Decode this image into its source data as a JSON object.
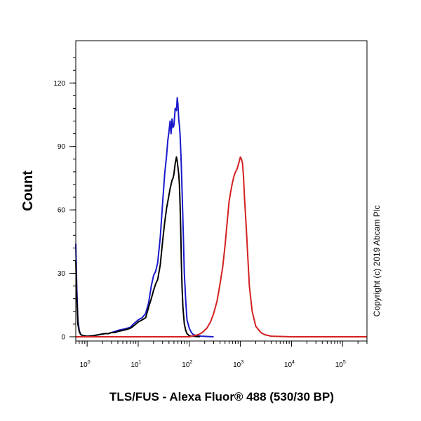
{
  "chart_data": {
    "type": "line",
    "xlabel": "TLS/FUS - Alexa Fluor® 488 (530/30 BP)",
    "ylabel": "Count",
    "copyright": "Copyright (c) 2019 Abcam Plc",
    "x_scale": "log",
    "xlim": [
      0.6,
      300000
    ],
    "ylim": [
      -2,
      140
    ],
    "x_ticks": [
      {
        "value": 1,
        "base": "10",
        "exp": "0"
      },
      {
        "value": 10,
        "base": "10",
        "exp": "1"
      },
      {
        "value": 100,
        "base": "10",
        "exp": "2"
      },
      {
        "value": 1000,
        "base": "10",
        "exp": "3"
      },
      {
        "value": 10000,
        "base": "10",
        "exp": "4"
      },
      {
        "value": 100000,
        "base": "10",
        "exp": "5"
      }
    ],
    "y_ticks": [
      {
        "value": 0,
        "label": "0"
      },
      {
        "value": 30,
        "label": "30"
      },
      {
        "value": 60,
        "label": "60"
      },
      {
        "value": 90,
        "label": "90"
      },
      {
        "value": 120,
        "label": "120"
      }
    ],
    "series": [
      {
        "color": "#1a1acc",
        "x": [
          0.6,
          0.63,
          0.66,
          0.7,
          0.75,
          0.85,
          1.0,
          1.3,
          1.7,
          2.2,
          2.6,
          3.0,
          3.5,
          4.0,
          5.0,
          6.0,
          7.0,
          8.0,
          9.0,
          10.0,
          12.0,
          14.0,
          16.0,
          18.0,
          20.0,
          22.0,
          24.0,
          27.0,
          30.0,
          33.0,
          36.0,
          38.0,
          40.0,
          42.0,
          44.0,
          46.0,
          48.0,
          50.0,
          53.0,
          56.0,
          58.0,
          60.0,
          62.0,
          64.0,
          66.0,
          68.0,
          70.0,
          72.0,
          75.0,
          80.0,
          85.0,
          90.0,
          100.0,
          110.0,
          120.0,
          140.0,
          170.0,
          200.0,
          300.0
        ],
        "y": [
          44,
          22,
          8,
          3,
          1,
          0.5,
          0.3,
          0.5,
          1,
          1.5,
          1.5,
          2,
          2.5,
          3,
          3.5,
          4,
          4.5,
          6,
          7,
          8,
          9,
          11,
          16,
          24,
          29,
          31,
          35,
          47,
          63,
          77,
          86,
          93,
          97,
          102,
          96,
          103,
          99,
          100,
          108,
          107,
          113,
          110,
          103,
          100,
          95,
          88,
          80,
          70,
          55,
          30,
          17,
          8,
          4,
          2,
          1,
          0.5,
          0.3,
          0.2,
          0
        ]
      },
      {
        "color": "#000000",
        "x": [
          0.6,
          0.63,
          0.66,
          0.7,
          0.75,
          0.85,
          1.0,
          1.3,
          1.7,
          2.2,
          2.6,
          3.0,
          3.5,
          4.0,
          5.0,
          6.0,
          7.0,
          8.0,
          9.0,
          10.0,
          12.0,
          14.0,
          16.0,
          18.0,
          20.0,
          22.0,
          24.0,
          27.0,
          30.0,
          33.0,
          36.0,
          38.0,
          40.0,
          42.0,
          44.0,
          46.0,
          48.0,
          50.0,
          53.0,
          56.0,
          58.0,
          60.0,
          62.0,
          64.0,
          66.0,
          68.0,
          70.0,
          72.0,
          75.0,
          80.0,
          85.0,
          90.0,
          100.0,
          110.0,
          130.0,
          160.0
        ],
        "y": [
          36,
          18,
          6,
          2.5,
          1,
          0.5,
          0.3,
          0.5,
          1,
          1.5,
          1.5,
          2,
          2,
          2.5,
          3,
          3.5,
          4,
          5,
          6,
          7,
          8,
          9,
          14,
          18,
          22,
          25,
          27,
          34,
          45,
          54,
          61,
          64,
          67,
          70,
          72,
          74,
          75,
          77,
          82,
          85,
          83,
          80,
          77,
          72,
          62,
          50,
          35,
          24,
          14,
          6,
          3,
          1.5,
          0.5,
          0.3,
          0.2,
          0
        ]
      },
      {
        "color": "#d42020",
        "x": [
          0.6,
          1,
          10,
          100,
          150,
          180,
          220,
          260,
          300,
          350,
          400,
          450,
          500,
          550,
          600,
          650,
          700,
          750,
          800,
          850,
          900,
          950,
          1000,
          1050,
          1100,
          1150,
          1200,
          1300,
          1400,
          1500,
          1700,
          2000,
          2500,
          3000,
          4000,
          10000,
          300000
        ],
        "y": [
          0,
          0,
          0,
          0,
          1,
          2,
          4,
          7,
          11,
          17,
          25,
          33,
          43,
          54,
          64,
          69,
          73,
          76,
          78,
          79,
          81,
          83,
          85,
          84,
          82,
          76,
          66,
          52,
          37,
          24,
          12,
          5,
          2,
          1,
          0.3,
          0,
          0
        ]
      }
    ]
  }
}
